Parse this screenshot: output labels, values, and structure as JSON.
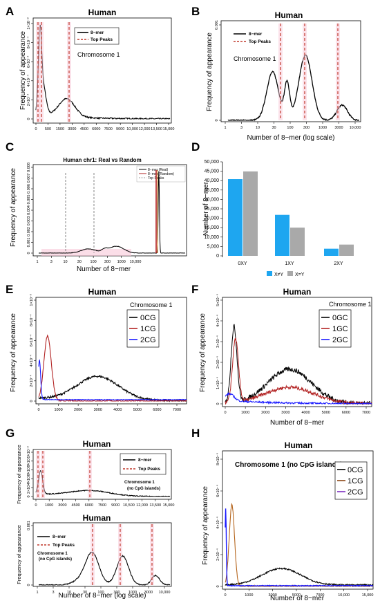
{
  "panels": {
    "A": {
      "label": "A",
      "title": "Human",
      "ylabel": "Frequency of appearance",
      "annotation": "Chromosome 1",
      "legend": [
        "8−mer",
        "Top Peaks"
      ],
      "xticks": [
        "0",
        "500",
        "1500",
        "3000",
        "4500",
        "6000",
        "7500",
        "9000",
        "10,000",
        "12,000",
        "13,500",
        "15,000"
      ],
      "yticks": [
        "0",
        "2×10⁻⁴",
        "4×10⁻⁴",
        "6×10⁻⁴",
        "8×10⁻⁴",
        "1×10⁻³"
      ]
    },
    "B": {
      "label": "B",
      "title": "Human",
      "ylabel": "Frequency of appearance",
      "xlabel": "Number of 8−mer (log scale)",
      "annotation": "Chromosome 1",
      "legend": [
        "8−mer",
        "Top Peaks"
      ],
      "xticks": [
        "1",
        "3",
        "10",
        "30",
        "100",
        "300",
        "1000",
        "3000",
        "10,000"
      ],
      "yticks": [
        "0",
        "0.001"
      ]
    },
    "C": {
      "label": "C",
      "title": "Human chr1: Real vs Random",
      "ylabel": "Frequency of appearance",
      "xlabel": "Number of 8−mer",
      "legend": [
        "8−mer (Real)",
        "8−mer (Random)",
        "Top Peaks"
      ],
      "xticks": [
        "1",
        "3",
        "10",
        "30",
        "100",
        "300",
        "1000",
        "10,000"
      ],
      "yticks": [
        "0",
        "0.001",
        "0.002",
        "0.003",
        "0.004",
        "0.005",
        "0.006",
        "0.007",
        "0.008"
      ]
    },
    "D": {
      "label": "D",
      "ylabel": "Number of 8−mer",
      "legend": [
        "X≠Y",
        "X=Y"
      ],
      "yticks": [
        "0",
        "5,000",
        "10,000",
        "15,000",
        "20,000",
        "25,000",
        "30,000",
        "35,000",
        "40,000",
        "45,000",
        "50,000"
      ]
    },
    "E": {
      "label": "E",
      "title": "Human",
      "ylabel": "Frequency of appearance",
      "annotation": "Chromosome 1",
      "legend": [
        "0CG",
        "1CG",
        "2CG"
      ],
      "xticks": [
        "0",
        "1000",
        "2000",
        "3000",
        "4000",
        "5000",
        "6000",
        "7000"
      ],
      "yticks": [
        "0",
        "2×10⁻⁴",
        "4×10⁻⁴",
        "6×10⁻⁴",
        "8×10⁻⁴",
        "1×10⁻³"
      ]
    },
    "F": {
      "label": "F",
      "title": "Human",
      "ylabel": "Frequency of appearance",
      "xlabel": "Number of 8−mer",
      "annotation": "Chromosome 1",
      "legend": [
        "0GC",
        "1GC",
        "2GC"
      ],
      "xticks": [
        "0",
        "1000",
        "2000",
        "3000",
        "4000",
        "5000",
        "6000",
        "7000"
      ],
      "yticks": [
        "0",
        "1×10⁻⁴",
        "2×10⁻⁴",
        "3×10⁻⁴",
        "4×10⁻⁴",
        "5×10⁻⁴"
      ]
    },
    "G1": {
      "label": "G",
      "title": "Human",
      "ylabel": "Frequency of appearance",
      "annotation": [
        "Chromosome 1",
        "(no CpG islands)"
      ],
      "legend": [
        "8−mer",
        "Top Peaks"
      ],
      "xticks": [
        "0",
        "1000",
        "3000",
        "4500",
        "6000",
        "7500",
        "9000",
        "10,500",
        "12,000",
        "13,500",
        "15,000"
      ],
      "yticks": [
        "0",
        "2×10⁻⁴",
        "4×10⁻⁴",
        "6×10⁻⁴",
        "8×10⁻⁴",
        "1×10⁻³"
      ]
    },
    "G2": {
      "title": "Human",
      "ylabel": "Frequency of appearance",
      "xlabel": "Number of 8−mer (log scale)",
      "annotation": [
        "Chromosome 1",
        "(no CpG islands)"
      ],
      "legend": [
        "8−mer",
        "Top Peaks"
      ],
      "xticks": [
        "1",
        "3",
        "10",
        "30",
        "100",
        "300",
        "1000",
        "3000",
        "10,000"
      ],
      "yticks": [
        "0",
        "0.001"
      ]
    },
    "H": {
      "label": "H",
      "title": "Human",
      "ylabel": "Frequency of appearance",
      "xlabel": "Number of 8−mer",
      "annotation": "Chromosome 1 (no CpG islands)",
      "legend": [
        "0CG",
        "1CG",
        "2CG"
      ],
      "xticks": [
        "0",
        "1000",
        "3000",
        "5000",
        "7000",
        "10,000",
        "15,000"
      ],
      "yticks": [
        "0",
        "2×10⁻⁴",
        "4×10⁻⁴",
        "6×10⁻⁴",
        "8×10⁻⁴"
      ]
    }
  },
  "colors": {
    "black": "#000000",
    "red": "#b22222",
    "blue": "#1a1aff",
    "bar_a": "#1ea6f0",
    "bar_b": "#a9a9a9",
    "dashed": "#c0392b",
    "shade": "#f8c8d8"
  },
  "chart_data": [
    {
      "panel": "D",
      "type": "bar",
      "categories": [
        "0XY",
        "1XY",
        "2XY"
      ],
      "series": [
        {
          "name": "X≠Y",
          "values": [
            40800,
            21800,
            3800
          ]
        },
        {
          "name": "X=Y",
          "values": [
            44900,
            15000,
            6000
          ]
        }
      ],
      "ylim": [
        0,
        50000
      ],
      "ylabel": "Number of 8−mer"
    },
    {
      "panel": "A",
      "type": "line",
      "xlim": [
        0,
        15000
      ],
      "series": [
        {
          "name": "8−mer",
          "peaks": [
            150,
            3500
          ]
        }
      ],
      "top_peaks": [
        50,
        300,
        3600
      ]
    },
    {
      "panel": "B",
      "type": "line",
      "x_scale": "log",
      "series": [
        {
          "name": "8−mer",
          "peaks": [
            40,
            300,
            3000
          ]
        }
      ],
      "top_peaks": [
        40,
        300,
        3000
      ]
    },
    {
      "panel": "E",
      "type": "line",
      "xlim": [
        0,
        7500
      ],
      "series": [
        {
          "name": "0CG",
          "peak": 3500
        },
        {
          "name": "1CG",
          "peak": 400
        },
        {
          "name": "2CG",
          "peak": 50
        }
      ]
    },
    {
      "panel": "F",
      "type": "line",
      "xlim": [
        0,
        7500
      ],
      "series": [
        {
          "name": "0GC",
          "peak": 300
        },
        {
          "name": "1GC",
          "peak": 400
        },
        {
          "name": "2GC",
          "peak": 200
        }
      ]
    },
    {
      "panel": "H",
      "type": "line",
      "xlim": [
        0,
        15000
      ],
      "series": [
        {
          "name": "0CG",
          "peak": 6500
        },
        {
          "name": "1CG",
          "peak": 650
        },
        {
          "name": "2CG",
          "peak": 30
        }
      ]
    }
  ]
}
